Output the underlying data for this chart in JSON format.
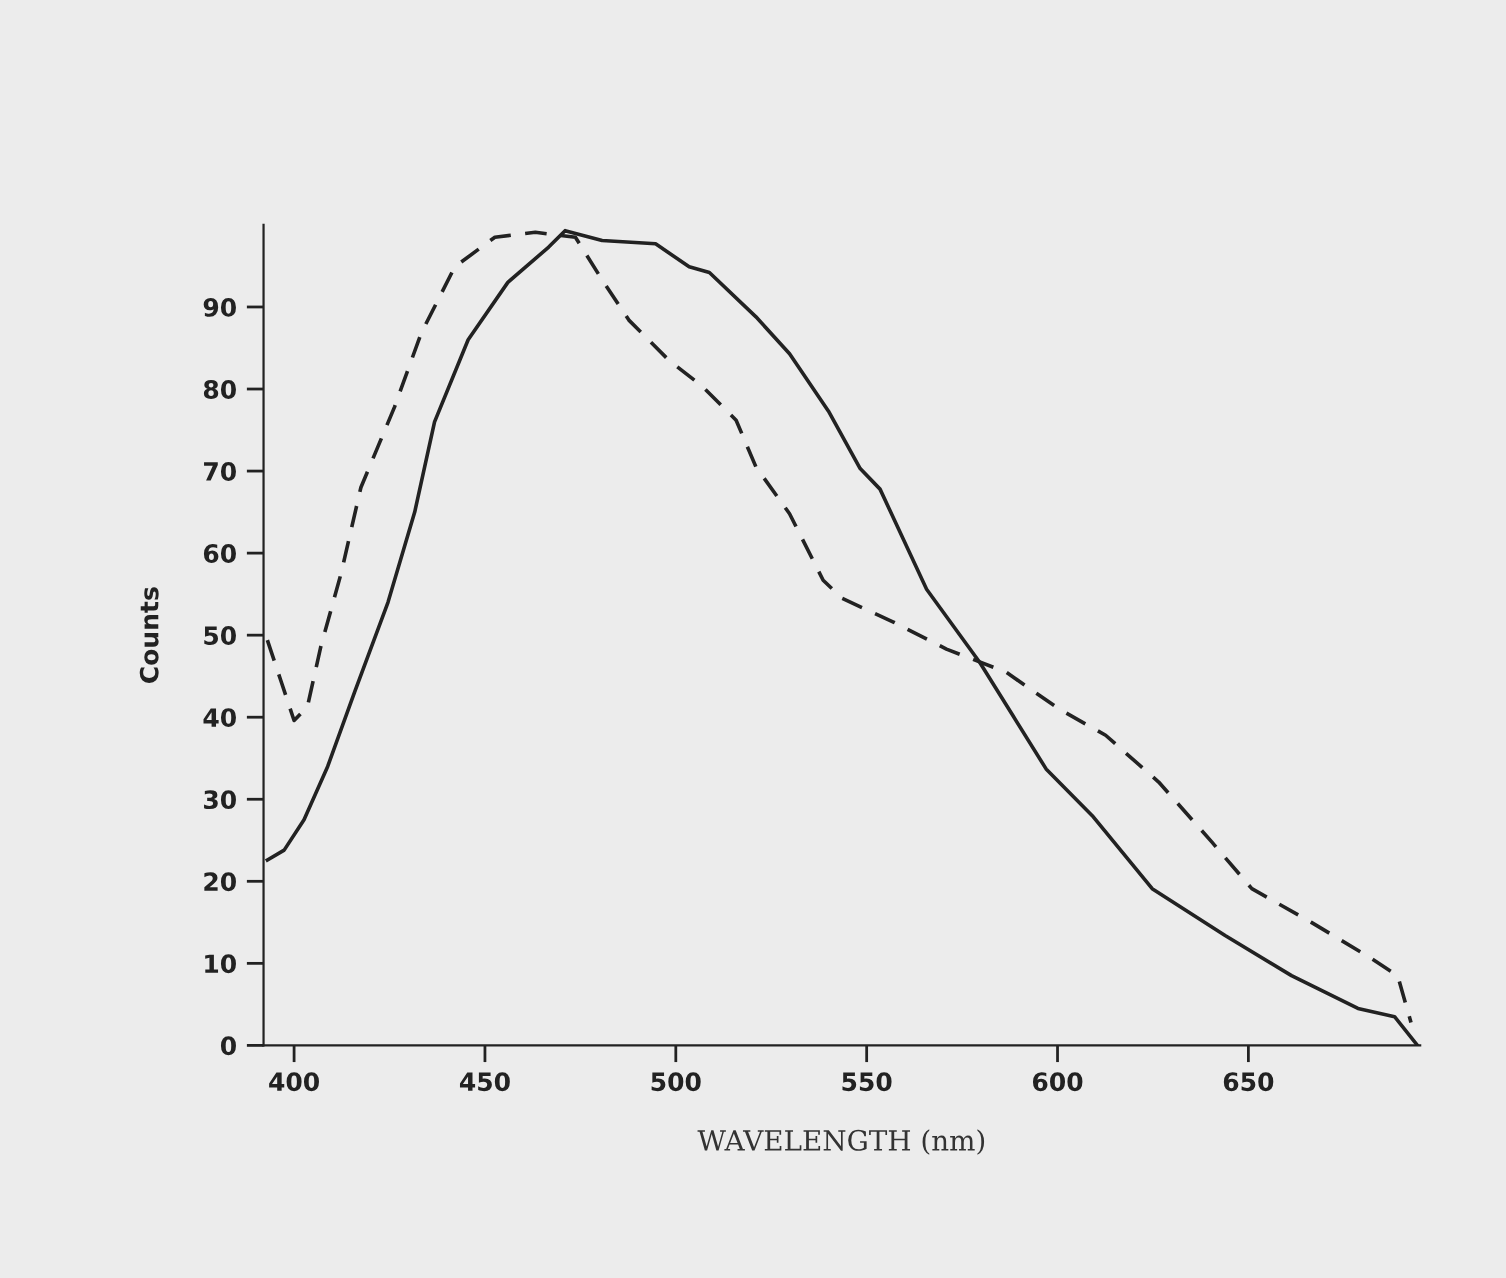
{
  "chart_data": {
    "type": "line",
    "xlabel": "WAVELENGTH (nm)",
    "ylabel": "Counts",
    "xlim": [
      392,
      695
    ],
    "ylim": [
      0,
      100
    ],
    "xticks": [
      400,
      450,
      500,
      550,
      600,
      650
    ],
    "yticks": [
      0,
      10,
      20,
      30,
      40,
      50,
      60,
      70,
      80,
      90
    ],
    "grid": false,
    "legend": false,
    "marker": "none",
    "series": [
      {
        "color": "#222222",
        "line_style": "solid",
        "x": [
          393,
          397.4,
          402.6,
          408.8,
          415.8,
          424.6,
          431.6,
          436.8,
          445.6,
          456,
          466.7,
          471,
          480.7,
          494.7,
          503.5,
          508.8,
          521,
          529.8,
          540,
          548.3,
          553.5,
          565.7,
          579.6,
          588.3,
          597,
          609.1,
          624.8,
          643.9,
          661.3,
          678.7,
          688.3,
          694.3
        ],
        "values": [
          22.6,
          23.8,
          27.5,
          34,
          43,
          54,
          65,
          76,
          86,
          93,
          97.3,
          99.3,
          98.1,
          97.7,
          94.9,
          94.2,
          88.8,
          84.3,
          77.3,
          70.3,
          67.8,
          55.6,
          46.7,
          40.2,
          33.7,
          28,
          19.1,
          13.4,
          8.5,
          4.5,
          3.5,
          0
        ]
      },
      {
        "color": "#222222",
        "line_style": "dashed",
        "x": [
          393,
          396.5,
          400,
          403.5,
          407,
          412.3,
          417.5,
          426.3,
          433.3,
          442.1,
          452.6,
          463.2,
          473.7,
          480.7,
          487.7,
          498.2,
          507,
          515.8,
          521,
          529.8,
          538.6,
          543.5,
          557,
          570.9,
          586.5,
          600.4,
          612.6,
          626.5,
          640.4,
          650.9,
          666.5,
          682.2,
          689.1,
          692.6
        ],
        "values": [
          49.4,
          44.5,
          39.6,
          41.3,
          48.6,
          57.5,
          68,
          77.8,
          86.8,
          94.9,
          98.5,
          99.1,
          98.5,
          93.3,
          88.4,
          83.5,
          80.3,
          76.2,
          70.5,
          64.8,
          56.7,
          54.5,
          51.6,
          48.3,
          45.5,
          41,
          37.8,
          32.1,
          24.8,
          19.1,
          15,
          10.6,
          8.5,
          2.8
        ]
      }
    ]
  }
}
